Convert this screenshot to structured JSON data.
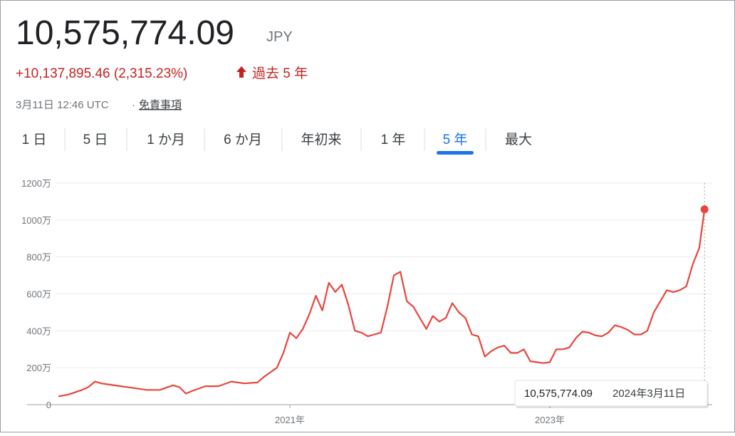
{
  "header": {
    "price": "10,575,774.09",
    "currency": "JPY",
    "change": "+10,137,895.46 (2,315.23%)",
    "period": "過去 5 年",
    "timestamp": "3月11日 12:46 UTC",
    "separator": "·",
    "disclaimer": "免責事項"
  },
  "tabs": {
    "items": [
      "1 日",
      "5 日",
      "1 か月",
      "6 か月",
      "年初来",
      "1 年",
      "5 年",
      "最大"
    ],
    "selected": 6
  },
  "chart_data": {
    "type": "line",
    "color": "#e8453c",
    "x": [
      2019.22,
      2019.3,
      2019.4,
      2019.45,
      2019.5,
      2019.55,
      2019.6,
      2019.7,
      2019.8,
      2019.9,
      2020.0,
      2020.1,
      2020.15,
      2020.2,
      2020.25,
      2020.35,
      2020.45,
      2020.55,
      2020.65,
      2020.75,
      2020.8,
      2020.85,
      2020.9,
      2020.95,
      2021.0,
      2021.05,
      2021.1,
      2021.15,
      2021.2,
      2021.25,
      2021.3,
      2021.35,
      2021.4,
      2021.45,
      2021.5,
      2021.55,
      2021.6,
      2021.65,
      2021.7,
      2021.75,
      2021.8,
      2021.85,
      2021.9,
      2021.95,
      2022.0,
      2022.05,
      2022.1,
      2022.15,
      2022.2,
      2022.25,
      2022.3,
      2022.35,
      2022.4,
      2022.45,
      2022.5,
      2022.55,
      2022.6,
      2022.65,
      2022.7,
      2022.75,
      2022.8,
      2022.85,
      2022.9,
      2022.95,
      2023.0,
      2023.05,
      2023.1,
      2023.15,
      2023.2,
      2023.25,
      2023.3,
      2023.35,
      2023.4,
      2023.45,
      2023.5,
      2023.55,
      2023.6,
      2023.65,
      2023.7,
      2023.75,
      2023.8,
      2023.85,
      2023.9,
      2023.95,
      2024.0,
      2024.05,
      2024.1,
      2024.15,
      2024.19
    ],
    "values": [
      450000,
      550000,
      800000,
      950000,
      1250000,
      1150000,
      1100000,
      1000000,
      900000,
      800000,
      800000,
      1050000,
      950000,
      600000,
      750000,
      1000000,
      1000000,
      1250000,
      1150000,
      1200000,
      1500000,
      1750000,
      2000000,
      2800000,
      3900000,
      3600000,
      4100000,
      4900000,
      5900000,
      5100000,
      6600000,
      6100000,
      6500000,
      5400000,
      4000000,
      3900000,
      3700000,
      3800000,
      3900000,
      5300000,
      7000000,
      7200000,
      5600000,
      5300000,
      4700000,
      4100000,
      4800000,
      4500000,
      4700000,
      5500000,
      5000000,
      4700000,
      3800000,
      3700000,
      2600000,
      2900000,
      3100000,
      3200000,
      2800000,
      2800000,
      3000000,
      2350000,
      2300000,
      2250000,
      2300000,
      3000000,
      3000000,
      3100000,
      3600000,
      3950000,
      3900000,
      3750000,
      3700000,
      3900000,
      4300000,
      4200000,
      4050000,
      3800000,
      3800000,
      4000000,
      5000000,
      5600000,
      6200000,
      6100000,
      6200000,
      6400000,
      7600000,
      8500000,
      10575774.09
    ],
    "xlim": [
      2019.2,
      2024.2
    ],
    "xticks": [
      {
        "value": 2021,
        "label": "2021年"
      },
      {
        "value": 2023,
        "label": "2023年"
      }
    ],
    "ylim": [
      0,
      12000000
    ],
    "yticks": [
      0,
      {
        "value": 2000000,
        "label": "200万"
      },
      {
        "value": 4000000,
        "label": "400万"
      },
      {
        "value": 6000000,
        "label": "600万"
      },
      {
        "value": 8000000,
        "label": "800万"
      },
      {
        "value": 10000000,
        "label": "1000万"
      },
      {
        "value": 12000000,
        "label": "1200万"
      }
    ],
    "grid": true,
    "tooltip": {
      "value_label": "10,575,774.09",
      "date": "2024年3月11日"
    }
  }
}
